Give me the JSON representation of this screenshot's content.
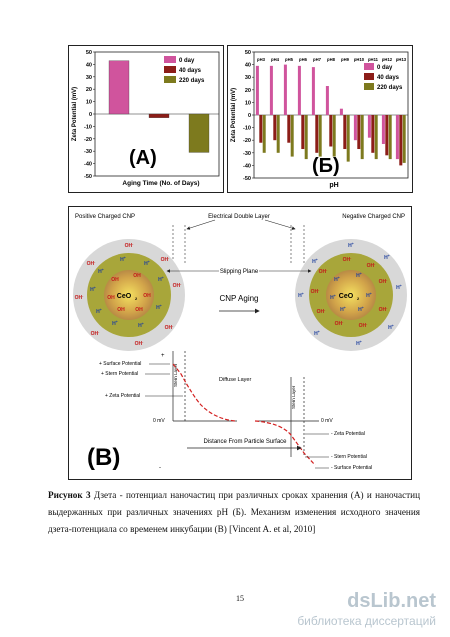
{
  "chart_data": [
    {
      "type": "bar",
      "panel_label": "(A)",
      "xlabel": "Aging Time (No. of Days)",
      "ylabel": "Zeta Potential (mV)",
      "ylim": [
        -50,
        50
      ],
      "ytick_labels": [
        "50",
        "40",
        "30",
        "20",
        "10",
        "0",
        "-10",
        "-20",
        "-30",
        "-40",
        "-50"
      ],
      "legend_placement": "top-right",
      "series": [
        {
          "name": "0 day",
          "values": [
            43
          ]
        },
        {
          "name": "40 days",
          "values": [
            -3
          ]
        },
        {
          "name": "220 days",
          "values": [
            -31
          ]
        }
      ],
      "colors": [
        "#d0549d",
        "#8c1d18",
        "#7d7a1e"
      ]
    },
    {
      "type": "bar",
      "panel_label": "(Б)",
      "xlabel": "pH",
      "ylabel": "Zeta Potential (mV)",
      "ylim": [
        -50,
        50
      ],
      "ytick_labels": [
        "50",
        "40",
        "30",
        "20",
        "10",
        "0",
        "-10",
        "-20",
        "-30",
        "-40",
        "-50"
      ],
      "legend_placement": "right",
      "categories": [
        "pH3",
        "pH4",
        "pH5",
        "pH6",
        "pH7",
        "pH8",
        "pH9",
        "pH10",
        "pH11",
        "pH12",
        "pH13"
      ],
      "series": [
        {
          "name": "0 day",
          "values": [
            39,
            39,
            40,
            39,
            38,
            23,
            5,
            -20,
            -18,
            -23,
            -35
          ]
        },
        {
          "name": "40 days",
          "values": [
            -22,
            -20,
            -22,
            -27,
            -30,
            -25,
            -27,
            -27,
            -30,
            -32,
            -40
          ]
        },
        {
          "name": "220 days",
          "values": [
            -30,
            -30,
            -33,
            -35,
            -33,
            -33,
            -37,
            -35,
            -35,
            -35,
            -38
          ]
        }
      ],
      "colors": [
        "#d0549d",
        "#8c1d18",
        "#7d7a1e"
      ]
    }
  ],
  "figure_b": {
    "panel_label": "(B)",
    "left_title": "Positive Charged CNP",
    "right_title": "Negative Charged CNP",
    "edl_label": "Electrical Double Layer",
    "slipping_plane": "Slipping Plane",
    "arrow_label": "CNP Aging",
    "core_label": "CeO",
    "core_sub": "2",
    "oh": "OH",
    "h": "H",
    "surface_potential": "+ Surface Potential",
    "stern_potential": "+ Stern Potential",
    "zeta_potential": "+ Zeta Potential",
    "stern_layer": "Stern Layer",
    "diffuse_layer": "Diffuse Layer",
    "zero_mv": "0 mV",
    "neg_zeta": "- Zeta Potential",
    "neg_stern": "- Stern Potential",
    "neg_surface": "- Surface Potential",
    "distance": "Distance From Particle Surface",
    "plus_sign": "+",
    "minus_sign": "-"
  },
  "caption": {
    "label": "Рисунок 3",
    "text": " Дзета - потенциал наночастиц при различных сроках хранения (А) и наночастиц выдержанных при различных значениях pH (Б). Механизм изменения исходного значения дзета-потенциала со временем инкубации (В) [Vincent A. et al, 2010]"
  },
  "page_number": "15",
  "watermark": {
    "main": "dsLib.net",
    "sub": "библиотека диссертаций"
  }
}
